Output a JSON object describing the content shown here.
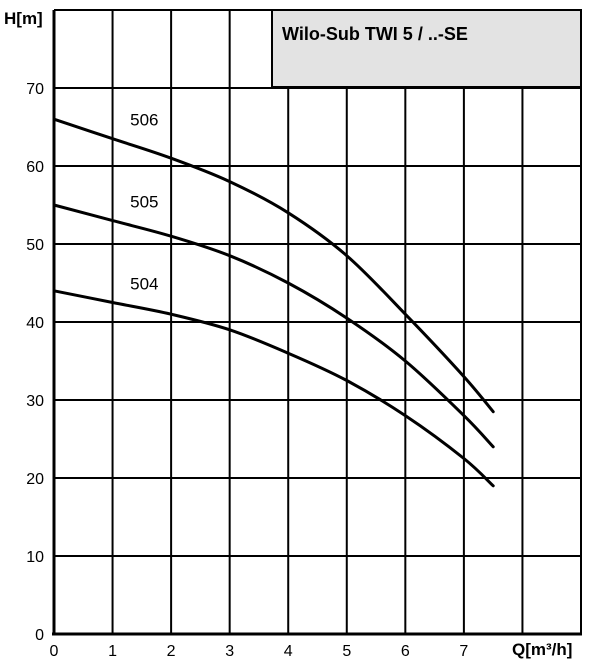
{
  "chart_data": {
    "type": "line",
    "title": "Wilo-Sub TWI 5 / ..-SE",
    "xlabel": "Q[m³/h]",
    "ylabel": "H[m]",
    "xlim": [
      0,
      9
    ],
    "ylim": [
      0,
      80
    ],
    "x_ticks": [
      0,
      1,
      2,
      3,
      4,
      5,
      6,
      7
    ],
    "y_ticks": [
      0,
      10,
      20,
      30,
      40,
      50,
      60,
      70
    ],
    "grid": true,
    "legend": "none",
    "title_box_color": "#e3e3e3",
    "line_color": "#000000",
    "series": [
      {
        "name": "506",
        "x": [
          0,
          1,
          2,
          3,
          4,
          5,
          6,
          7,
          7.5
        ],
        "y": [
          66,
          63.5,
          61,
          58,
          54,
          48.5,
          41,
          33,
          28.5
        ]
      },
      {
        "name": "505",
        "x": [
          0,
          1,
          2,
          3,
          4,
          5,
          6,
          7,
          7.5
        ],
        "y": [
          55,
          53,
          51,
          48.5,
          45,
          40.5,
          35,
          28,
          24
        ]
      },
      {
        "name": "504",
        "x": [
          0,
          1,
          2,
          3,
          4,
          5,
          6,
          7,
          7.5
        ],
        "y": [
          44,
          42.5,
          41,
          39,
          36,
          32.5,
          28,
          22.5,
          19
        ]
      }
    ]
  }
}
